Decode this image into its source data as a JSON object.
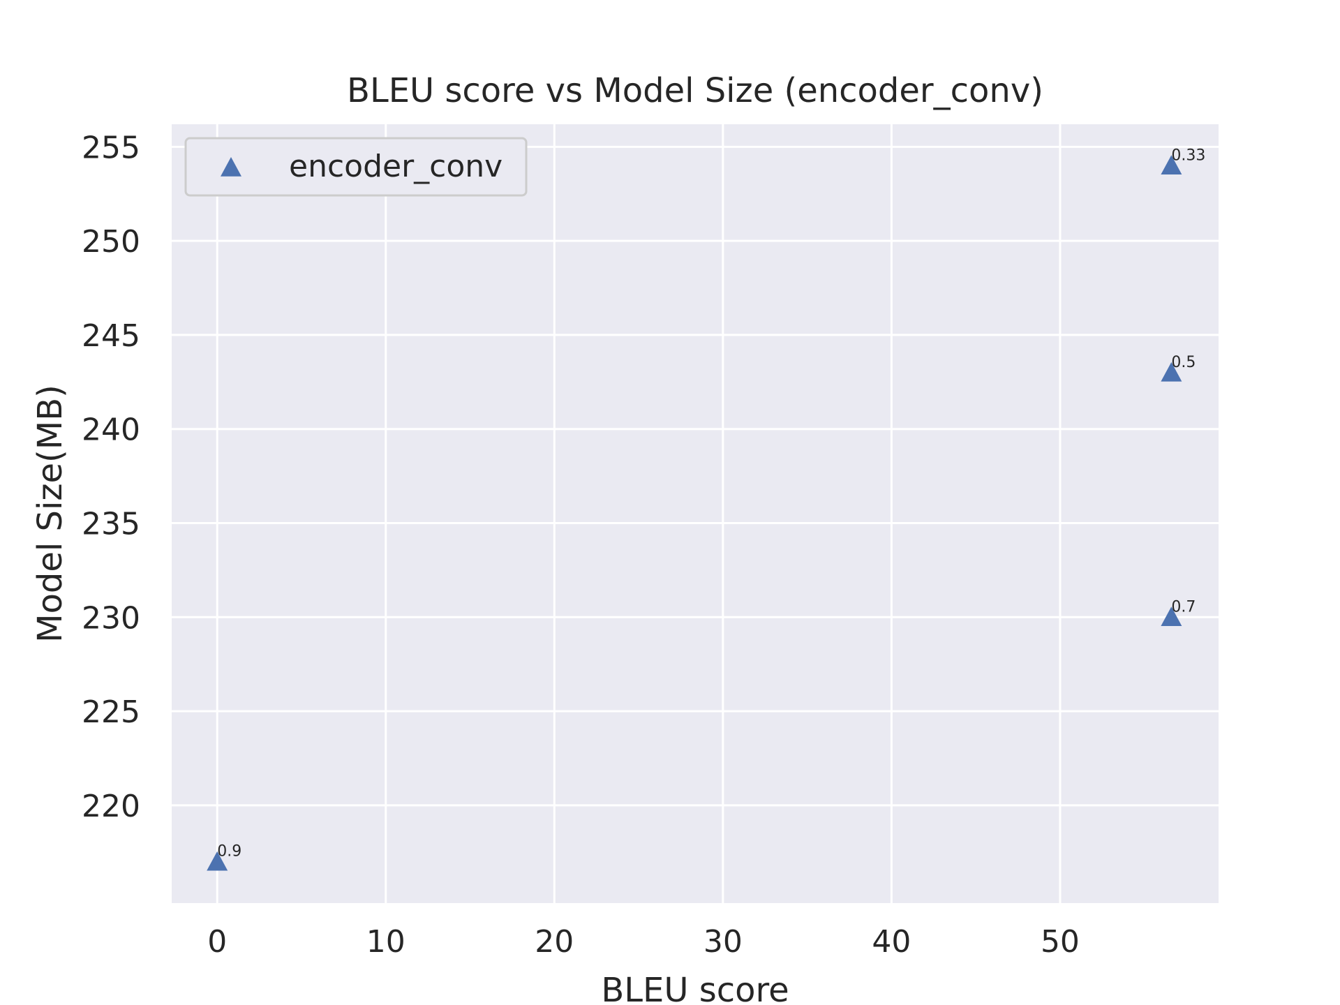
{
  "chart_data": {
    "type": "scatter",
    "title": "BLEU score vs Model Size (encoder_conv)",
    "xlabel": "BLEU score",
    "ylabel": "Model Size(MB)",
    "xlim": [
      -2.7,
      59.4
    ],
    "ylim": [
      214.8,
      256.2
    ],
    "xticks": [
      0,
      10,
      20,
      30,
      40,
      50
    ],
    "yticks": [
      220,
      225,
      230,
      235,
      240,
      245,
      250,
      255
    ],
    "grid": true,
    "background_color": "#eaeaf2",
    "grid_color": "#ffffff",
    "legend": {
      "position": "top-left",
      "entries": [
        "encoder_conv"
      ]
    },
    "series": [
      {
        "name": "encoder_conv",
        "marker": "triangle-up",
        "color": "#4c72b0",
        "points": [
          {
            "x": 0.0,
            "y": 217.0,
            "label": "0.9"
          },
          {
            "x": 56.6,
            "y": 230.0,
            "label": "0.7"
          },
          {
            "x": 56.6,
            "y": 243.0,
            "label": "0.5"
          },
          {
            "x": 56.6,
            "y": 254.0,
            "label": "0.33"
          }
        ]
      }
    ]
  }
}
